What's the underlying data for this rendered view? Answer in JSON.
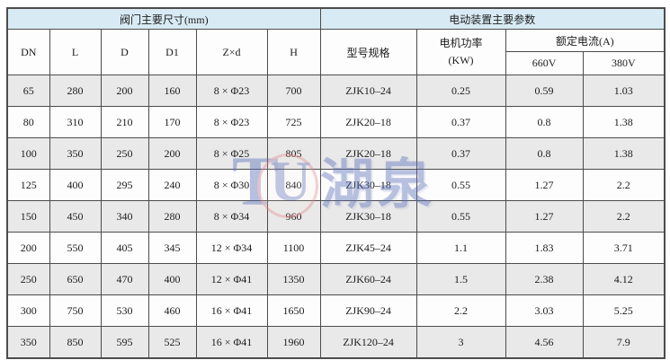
{
  "colors": {
    "header_blue": "#d8ebf4",
    "row_gray": "#e9e9e9",
    "row_white": "#fdfdfd",
    "border": "#4c4c4c",
    "watermark_blue": "#566cb6",
    "watermark_red": "#e28086"
  },
  "watermark": {
    "text": "湖泉"
  },
  "table": {
    "groups": [
      {
        "label": "阀门主要尺寸(mm)",
        "colspan": 6
      },
      {
        "label": "电动装置主要参数",
        "colspan": 4
      }
    ],
    "columns": [
      "DN",
      "L",
      "D",
      "D1",
      "Z×d",
      "H"
    ],
    "model_col": "型号规格",
    "power_col": {
      "line1": "电机功率",
      "line2": "(KW)"
    },
    "current_group": "额定电流(A)",
    "current_cols": [
      "660V",
      "380V"
    ],
    "rows": [
      [
        "65",
        "280",
        "200",
        "160",
        "8 × Φ23",
        "700",
        "ZJK10–24",
        "0.25",
        "0.59",
        "1.03"
      ],
      [
        "80",
        "310",
        "210",
        "170",
        "8 × Φ23",
        "725",
        "ZJK20–18",
        "0.37",
        "0.8",
        "1.38"
      ],
      [
        "100",
        "350",
        "250",
        "200",
        "8 × Φ25",
        "805",
        "ZJK20–18",
        "0.37",
        "0.8",
        "1.38"
      ],
      [
        "125",
        "400",
        "295",
        "240",
        "8 × Φ30",
        "840",
        "ZJK30–18",
        "0.55",
        "1.27",
        "2.2"
      ],
      [
        "150",
        "450",
        "340",
        "280",
        "8 × Φ34",
        "960",
        "ZJK30–18",
        "0.55",
        "1.27",
        "2.2"
      ],
      [
        "200",
        "550",
        "405",
        "345",
        "12 × Φ34",
        "1100",
        "ZJK45–24",
        "1.1",
        "1.83",
        "3.71"
      ],
      [
        "250",
        "650",
        "470",
        "400",
        "12 × Φ41",
        "1350",
        "ZJK60–24",
        "1.5",
        "2.38",
        "4.12"
      ],
      [
        "300",
        "750",
        "530",
        "460",
        "16 × Φ41",
        "1650",
        "ZJK90–24",
        "2.2",
        "3.03",
        "5.25"
      ],
      [
        "350",
        "850",
        "595",
        "525",
        "16 × Φ41",
        "1960",
        "ZJK120–24",
        "3",
        "4.56",
        "7.9"
      ]
    ]
  }
}
